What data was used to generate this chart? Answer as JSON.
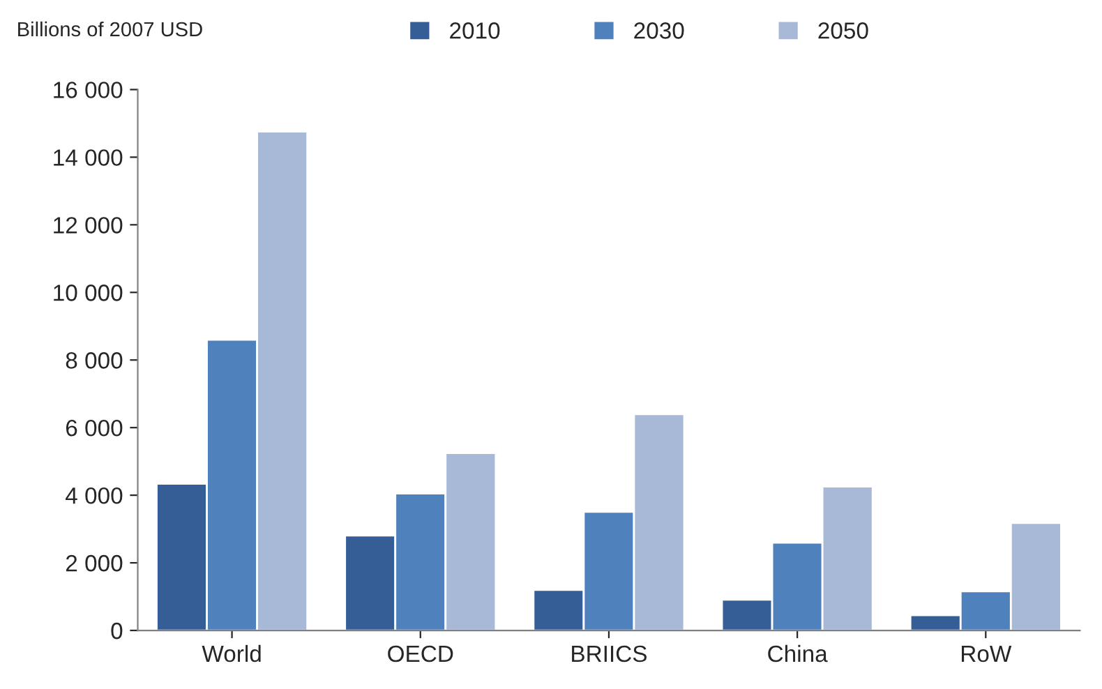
{
  "chart_data": {
    "type": "bar",
    "ylabel": "Billions of 2007 USD",
    "categories": [
      "World",
      "OECD",
      "BRIICS",
      "China",
      "RoW"
    ],
    "series": [
      {
        "name": "2010",
        "color": "#365e96",
        "values": [
          4340,
          2810,
          1200,
          910,
          450
        ]
      },
      {
        "name": "2030",
        "color": "#4f81bd",
        "values": [
          8600,
          4050,
          3510,
          2600,
          1160
        ]
      },
      {
        "name": "2050",
        "color": "#a8b9d8",
        "values": [
          14760,
          5250,
          6400,
          4260,
          3180
        ]
      }
    ],
    "ylim": [
      0,
      16000
    ],
    "yticks": [
      0,
      {
        "value": 2000,
        "label": "2 000"
      },
      {
        "value": 4000,
        "label": "4 000"
      },
      {
        "value": 6000,
        "label": "6 000"
      },
      {
        "value": 8000,
        "label": "8 000"
      },
      {
        "value": 10000,
        "label": "10 000"
      },
      {
        "value": 12000,
        "label": "12 000"
      },
      {
        "value": 14000,
        "label": "14 000"
      },
      {
        "value": 16000,
        "label": "16 000"
      }
    ],
    "grid": false,
    "legend": "top"
  }
}
